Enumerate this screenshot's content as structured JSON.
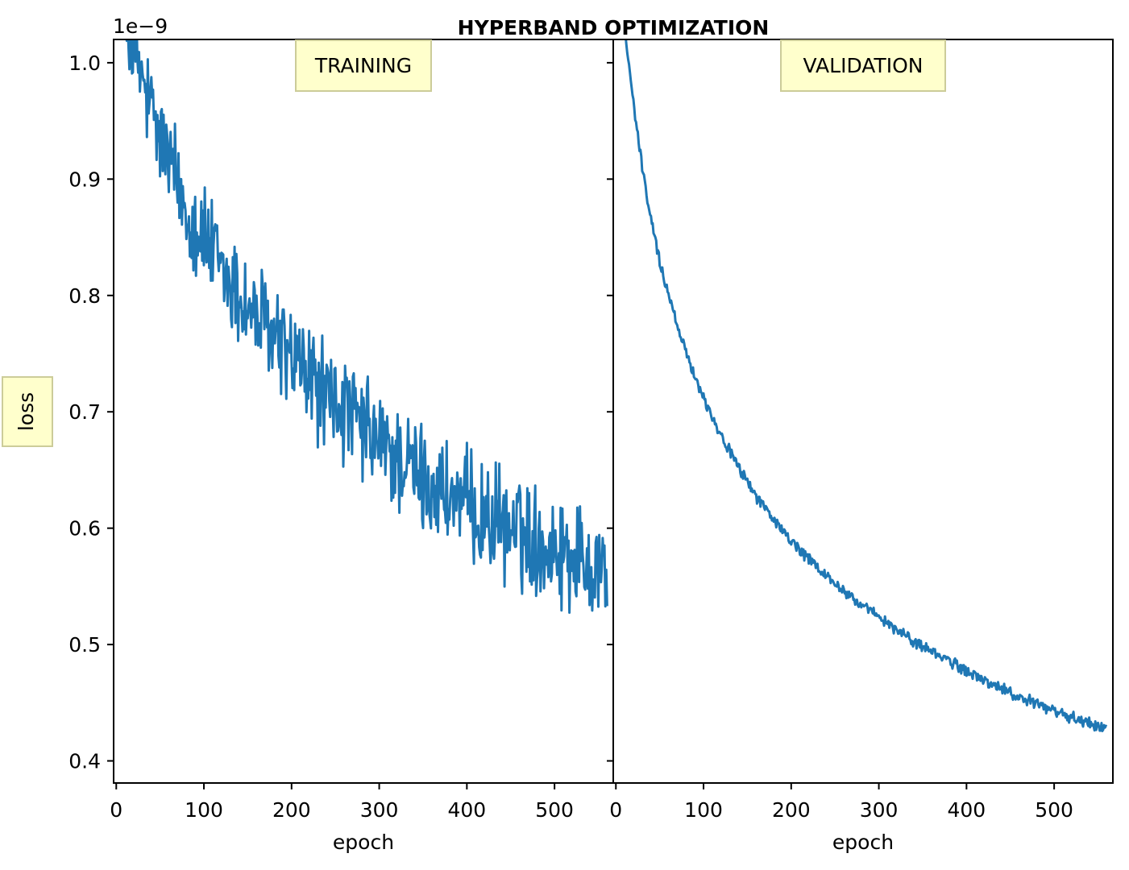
{
  "figure": {
    "suptitle": "HYPERBAND OPTIMIZATION",
    "ylabel": "loss",
    "offset_text": "1e−9",
    "label_box_fill": "#ffffcc",
    "label_box_stroke": "#cccc99",
    "line_color": "#1f77b4"
  },
  "chart_data": [
    {
      "type": "line",
      "title": "TRAINING",
      "xlabel": "epoch",
      "ylabel": "loss",
      "y_scale_factor": "1e-9",
      "xlim": [
        -3,
        567
      ],
      "ylim": [
        0.381,
        1.02
      ],
      "xticks": [
        0,
        100,
        200,
        300,
        400,
        500
      ],
      "yticks": [
        0.4,
        0.5,
        0.6,
        0.7,
        0.8,
        0.9,
        1.0
      ],
      "ytick_labels": [
        "0.4",
        "0.5",
        "0.6",
        "0.7",
        "0.8",
        "0.9",
        "1.0"
      ],
      "noise": 0.038,
      "series": [
        {
          "x": [
            0,
            20,
            40,
            60,
            80,
            100,
            120,
            140,
            160,
            180,
            200,
            220,
            240,
            260,
            280,
            300,
            320,
            340,
            360,
            380,
            400,
            420,
            440,
            460,
            480,
            500,
            520,
            540,
            560
          ],
          "values": [
            1.08,
            1.01,
            0.955,
            0.915,
            0.875,
            0.85,
            0.82,
            0.8,
            0.78,
            0.765,
            0.745,
            0.73,
            0.712,
            0.7,
            0.685,
            0.672,
            0.66,
            0.648,
            0.637,
            0.627,
            0.618,
            0.61,
            0.603,
            0.596,
            0.59,
            0.584,
            0.578,
            0.572,
            0.566
          ]
        }
      ]
    },
    {
      "type": "line",
      "title": "VALIDATION",
      "xlabel": "epoch",
      "xlim": [
        -3,
        567
      ],
      "ylim": [
        0.381,
        1.02
      ],
      "xticks": [
        0,
        100,
        200,
        300,
        400,
        500
      ],
      "noise": 0.004,
      "series": [
        {
          "x": [
            0,
            10,
            20,
            30,
            40,
            50,
            60,
            70,
            80,
            90,
            100,
            120,
            140,
            160,
            180,
            200,
            220,
            240,
            260,
            280,
            300,
            320,
            340,
            360,
            380,
            400,
            420,
            440,
            460,
            480,
            500,
            520,
            540,
            560
          ],
          "values": [
            1.12,
            1.03,
            0.965,
            0.91,
            0.865,
            0.83,
            0.8,
            0.775,
            0.752,
            0.732,
            0.712,
            0.68,
            0.652,
            0.628,
            0.607,
            0.589,
            0.573,
            0.559,
            0.546,
            0.534,
            0.523,
            0.513,
            0.503,
            0.494,
            0.486,
            0.477,
            0.469,
            0.462,
            0.455,
            0.449,
            0.443,
            0.437,
            0.432,
            0.428
          ]
        }
      ]
    }
  ]
}
